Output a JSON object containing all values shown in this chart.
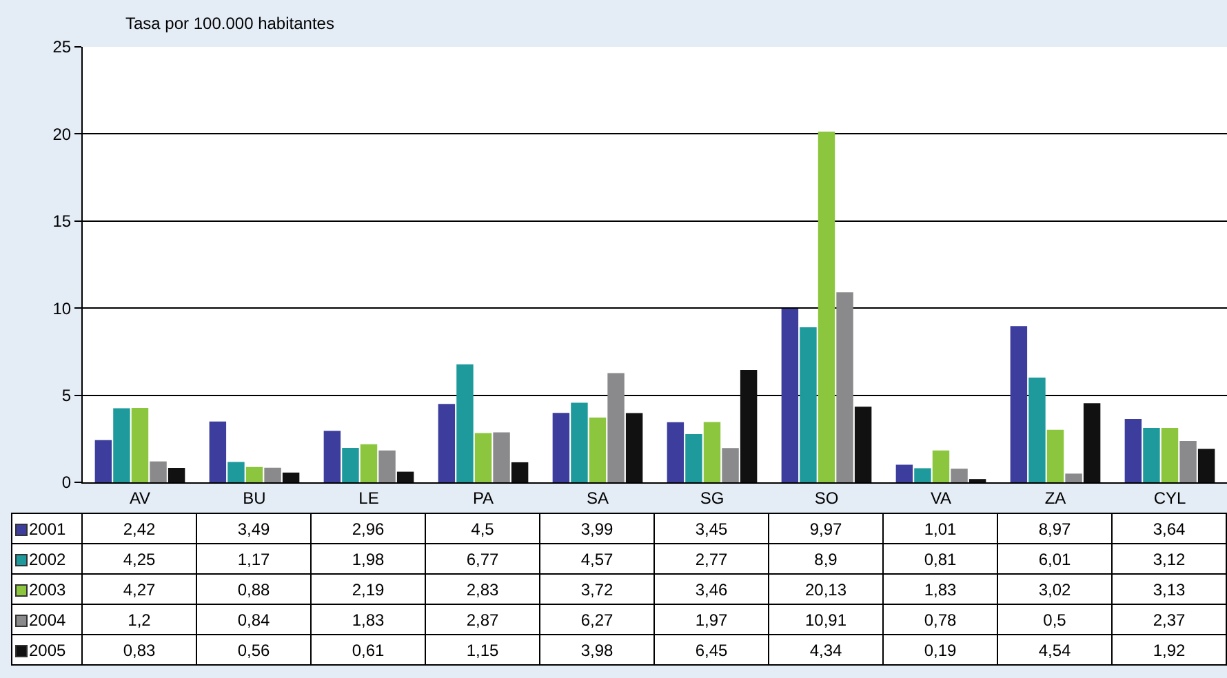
{
  "chart_data": {
    "type": "bar",
    "ylabel": "Tasa por 100.000 habitantes",
    "categories": [
      "AV",
      "BU",
      "LE",
      "PA",
      "SA",
      "SG",
      "SO",
      "VA",
      "ZA",
      "CYL"
    ],
    "series": [
      {
        "name": "2001",
        "color": "#3d3d9e",
        "values": [
          2.42,
          3.49,
          2.96,
          4.5,
          3.99,
          3.45,
          9.97,
          1.01,
          8.97,
          3.64
        ],
        "value_labels": [
          "2,42",
          "3,49",
          "2,96",
          "4,5",
          "3,99",
          "3,45",
          "9,97",
          "1,01",
          "8,97",
          "3,64"
        ]
      },
      {
        "name": "2002",
        "color": "#1e9a9c",
        "values": [
          4.25,
          1.17,
          1.98,
          6.77,
          4.57,
          2.77,
          8.9,
          0.81,
          6.01,
          3.12
        ],
        "value_labels": [
          "4,25",
          "1,17",
          "1,98",
          "6,77",
          "4,57",
          "2,77",
          "8,9",
          "0,81",
          "6,01",
          "3,12"
        ]
      },
      {
        "name": "2003",
        "color": "#8cc63e",
        "values": [
          4.27,
          0.88,
          2.19,
          2.83,
          3.72,
          3.46,
          20.13,
          1.83,
          3.02,
          3.13
        ],
        "value_labels": [
          "4,27",
          "0,88",
          "2,19",
          "2,83",
          "3,72",
          "3,46",
          "20,13",
          "1,83",
          "3,02",
          "3,13"
        ]
      },
      {
        "name": "2004",
        "color": "#8a8a8c",
        "values": [
          1.2,
          0.84,
          1.83,
          2.87,
          6.27,
          1.97,
          10.91,
          0.78,
          0.5,
          2.37
        ],
        "value_labels": [
          "1,2",
          "0,84",
          "1,83",
          "2,87",
          "6,27",
          "1,97",
          "10,91",
          "0,78",
          "0,5",
          "2,37"
        ]
      },
      {
        "name": "2005",
        "color": "#111111",
        "values": [
          0.83,
          0.56,
          0.61,
          1.15,
          3.98,
          6.45,
          4.34,
          0.19,
          4.54,
          1.92
        ],
        "value_labels": [
          "0,83",
          "0,56",
          "0,61",
          "1,15",
          "3,98",
          "6,45",
          "4,34",
          "0,19",
          "4,54",
          "1,92"
        ]
      }
    ],
    "ylim": [
      0,
      25
    ],
    "yticks": [
      0,
      5,
      10,
      15,
      20,
      25
    ],
    "grid": "y",
    "legend": "bottom left"
  }
}
